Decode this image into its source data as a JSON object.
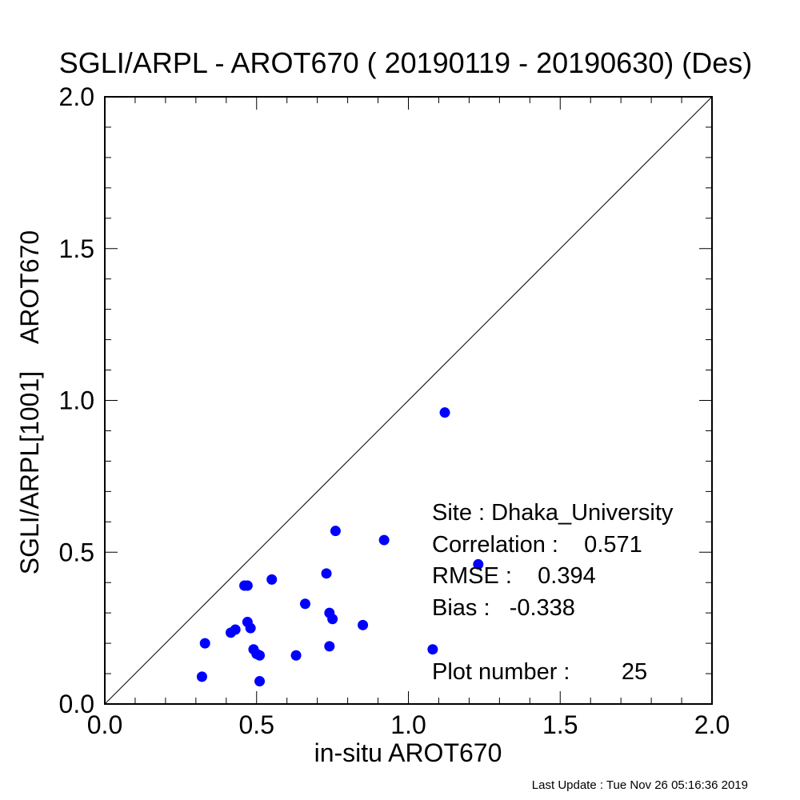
{
  "chart_data": {
    "type": "scatter",
    "title": "SGLI/ARPL - AROT670 ( 20190119 - 20190630) (Des)",
    "xlabel": "in-situ AROT670",
    "ylabel": "SGLI/ARPL[1001]    AROT670",
    "xlim": [
      0.0,
      2.0
    ],
    "ylim": [
      0.0,
      2.0
    ],
    "x_ticks": [
      "0.0",
      "0.5",
      "1.0",
      "1.5",
      "2.0"
    ],
    "y_ticks": [
      "0.0",
      "0.5",
      "1.0",
      "1.5",
      "2.0"
    ],
    "grid": false,
    "one_to_one_line": true,
    "marker_color": "#0000ff",
    "series": [
      {
        "points": [
          {
            "x": 1.12,
            "y": 0.96
          },
          {
            "x": 0.76,
            "y": 0.57
          },
          {
            "x": 0.92,
            "y": 0.54
          },
          {
            "x": 1.23,
            "y": 0.46
          },
          {
            "x": 0.73,
            "y": 0.43
          },
          {
            "x": 0.55,
            "y": 0.41
          },
          {
            "x": 0.46,
            "y": 0.39
          },
          {
            "x": 0.47,
            "y": 0.39
          },
          {
            "x": 0.66,
            "y": 0.33
          },
          {
            "x": 0.74,
            "y": 0.3
          },
          {
            "x": 0.75,
            "y": 0.28
          },
          {
            "x": 0.47,
            "y": 0.27
          },
          {
            "x": 0.85,
            "y": 0.26
          },
          {
            "x": 0.48,
            "y": 0.25
          },
          {
            "x": 0.43,
            "y": 0.245
          },
          {
            "x": 0.415,
            "y": 0.235
          },
          {
            "x": 0.33,
            "y": 0.2
          },
          {
            "x": 0.74,
            "y": 0.19
          },
          {
            "x": 1.08,
            "y": 0.18
          },
          {
            "x": 0.49,
            "y": 0.18
          },
          {
            "x": 0.5,
            "y": 0.165
          },
          {
            "x": 0.51,
            "y": 0.16
          },
          {
            "x": 0.63,
            "y": 0.16
          },
          {
            "x": 0.32,
            "y": 0.09
          },
          {
            "x": 0.51,
            "y": 0.075
          }
        ]
      }
    ],
    "annotations": {
      "site": "Site : Dhaka_University",
      "correlation": "Correlation :    0.571",
      "rmse": "RMSE :    0.394",
      "bias": "Bias :   -0.338",
      "plot_number": "Plot number :        25"
    }
  },
  "footer": {
    "last_update": "Last Update : Tue Nov 26 05:16:36 2019"
  }
}
